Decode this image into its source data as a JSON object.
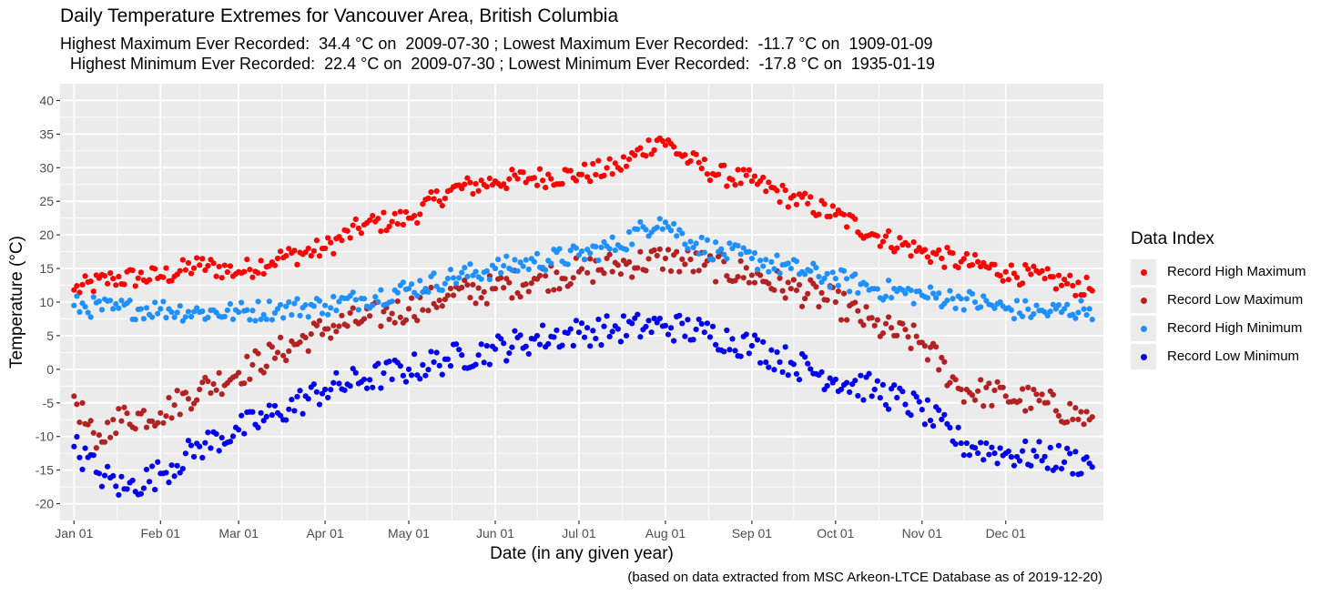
{
  "chart_data": {
    "type": "scatter",
    "title": "Daily Temperature Extremes for Vancouver Area, British Columbia",
    "subtitle_lines": [
      "Highest Maximum Ever Recorded:  34.4 °C on  2009-07-30 ; Lowest Maximum Ever Recorded:  -11.7 °C on  1909-01-09",
      " Highest Minimum Ever Recorded:  22.4 °C on  2009-07-30 ; Lowest Minimum Ever Recorded:  -17.8 °C on  1935-01-19"
    ],
    "xlabel": "Date (in any given year)",
    "ylabel": "Temperature (°C)",
    "caption": "(based on data extracted from MSC Arkeon-LTCE Database as of 2019-12-20)",
    "x_ticks": [
      {
        "label": "Jan 01",
        "date": "01-01"
      },
      {
        "label": "Feb 01",
        "date": "02-01"
      },
      {
        "label": "Mar 01",
        "date": "03-01"
      },
      {
        "label": "Apr 01",
        "date": "04-01"
      },
      {
        "label": "May 01",
        "date": "05-01"
      },
      {
        "label": "Jun 01",
        "date": "06-01"
      },
      {
        "label": "Jul 01",
        "date": "07-01"
      },
      {
        "label": "Aug 01",
        "date": "08-01"
      },
      {
        "label": "Sep 01",
        "date": "09-01"
      },
      {
        "label": "Oct 01",
        "date": "10-01"
      },
      {
        "label": "Nov 01",
        "date": "11-01"
      },
      {
        "label": "Dec 01",
        "date": "12-01"
      }
    ],
    "x_range": [
      "12-27 (prev)",
      "01-05 (next)"
    ],
    "y_ticks": [
      -20,
      -15,
      -10,
      -5,
      0,
      5,
      10,
      15,
      20,
      25,
      30,
      35,
      40
    ],
    "ylim": [
      -22.5,
      42.5
    ],
    "grid": true,
    "legend": {
      "title": "Data Index",
      "position": "right",
      "entries": [
        "Record High Maximum",
        "Record Low Maximum",
        "Record High Minimum",
        "Record Low Minimum"
      ]
    },
    "series": [
      {
        "name": "Record High Maximum",
        "color": "#ff0000",
        "x": [
          "01-01",
          "01-15",
          "02-01",
          "02-15",
          "03-01",
          "03-15",
          "04-01",
          "04-15",
          "05-01",
          "05-15",
          "06-01",
          "06-15",
          "07-01",
          "07-15",
          "07-30",
          "08-10",
          "08-20",
          "09-01",
          "09-15",
          "10-01",
          "10-15",
          "11-01",
          "11-15",
          "12-01",
          "12-15",
          "12-31"
        ],
        "y": [
          11.8,
          13.5,
          13.8,
          15.5,
          14.5,
          16.5,
          18.0,
          21.5,
          22.5,
          26.5,
          28.0,
          28.5,
          29.0,
          30.0,
          34.4,
          31.0,
          29.0,
          28.0,
          25.5,
          23.0,
          20.0,
          17.5,
          16.0,
          14.5,
          13.5,
          12.0
        ]
      },
      {
        "name": "Record Low Maximum",
        "color": "#b22222",
        "x": [
          "01-01",
          "01-09",
          "01-15",
          "02-01",
          "02-15",
          "03-01",
          "03-15",
          "04-01",
          "04-15",
          "05-01",
          "05-15",
          "06-01",
          "06-15",
          "07-01",
          "07-15",
          "08-01",
          "08-15",
          "09-01",
          "09-15",
          "10-01",
          "10-15",
          "11-01",
          "11-15",
          "12-01",
          "12-15",
          "12-31"
        ],
        "y": [
          -4.0,
          -11.7,
          -7.5,
          -6.5,
          -3.0,
          -0.5,
          2.5,
          6.0,
          7.5,
          9.0,
          11.0,
          12.0,
          13.5,
          14.5,
          15.5,
          16.5,
          15.5,
          14.0,
          12.0,
          10.0,
          6.5,
          4.0,
          -3.0,
          -4.0,
          -5.0,
          -7.5
        ]
      },
      {
        "name": "Record High Minimum",
        "color": "#1e90ff",
        "x": [
          "01-01",
          "01-15",
          "02-01",
          "02-15",
          "03-01",
          "03-15",
          "04-01",
          "04-15",
          "05-01",
          "05-15",
          "06-01",
          "06-15",
          "07-01",
          "07-15",
          "07-30",
          "08-10",
          "08-20",
          "09-01",
          "09-15",
          "10-01",
          "10-15",
          "11-01",
          "11-15",
          "12-01",
          "12-15",
          "12-31"
        ],
        "y": [
          9.5,
          9.0,
          9.0,
          8.5,
          8.5,
          9.0,
          9.5,
          10.5,
          12.0,
          13.5,
          15.0,
          16.0,
          17.0,
          18.5,
          22.4,
          19.0,
          17.5,
          16.5,
          15.0,
          13.5,
          12.0,
          11.0,
          10.5,
          9.0,
          8.5,
          9.0
        ]
      },
      {
        "name": "Record Low Minimum",
        "color": "#0000ee",
        "x": [
          "01-01",
          "01-10",
          "01-19",
          "02-01",
          "02-15",
          "03-01",
          "03-15",
          "04-01",
          "04-15",
          "05-01",
          "05-15",
          "06-01",
          "06-15",
          "07-01",
          "07-15",
          "08-01",
          "08-15",
          "09-01",
          "09-15",
          "10-01",
          "10-15",
          "11-01",
          "11-15",
          "12-01",
          "12-15",
          "12-31"
        ],
        "y": [
          -11.5,
          -15.5,
          -17.8,
          -15.5,
          -11.5,
          -9.0,
          -6.5,
          -3.0,
          -1.5,
          0.0,
          1.5,
          3.0,
          4.5,
          5.5,
          6.0,
          6.5,
          5.5,
          3.5,
          1.0,
          -1.5,
          -3.0,
          -6.0,
          -11.0,
          -12.5,
          -13.0,
          -14.0
        ]
      }
    ]
  }
}
